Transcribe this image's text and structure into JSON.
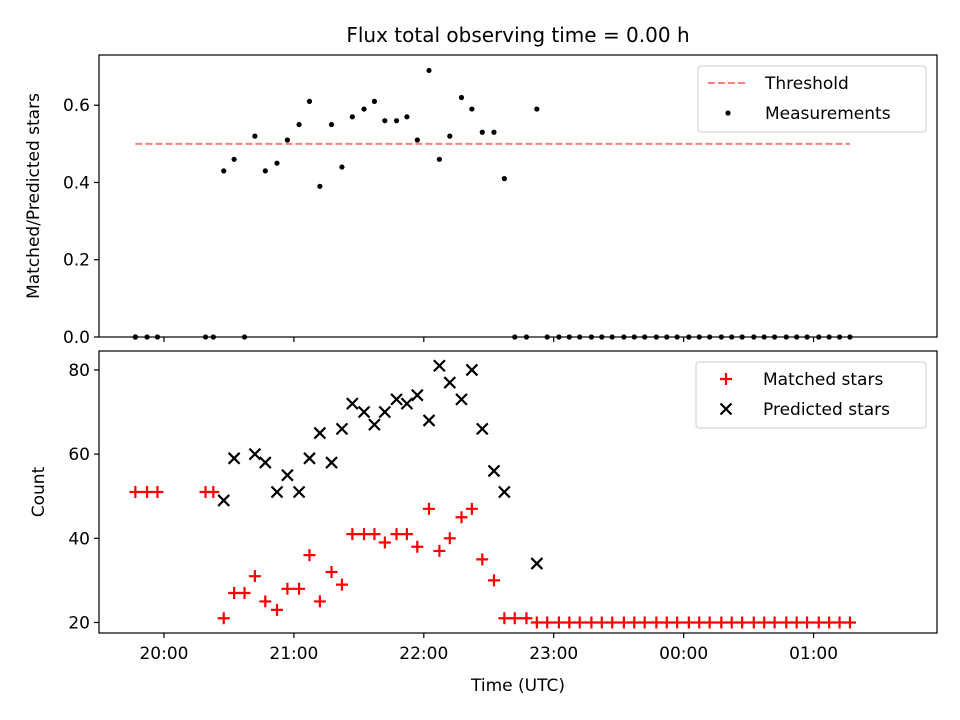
{
  "chart_data": {
    "title": "Flux total observing time = 0.00 h",
    "shared_x": {
      "label": "Time (UTC)",
      "unit": "hours",
      "range": [
        19.5,
        25.95
      ],
      "ticks": [
        20,
        21,
        22,
        23,
        24,
        25
      ],
      "tick_labels": [
        "20:00",
        "21:00",
        "22:00",
        "23:00",
        "00:00",
        "01:00"
      ]
    },
    "panels": [
      {
        "type": "scatter",
        "ylabel": "Matched/Predicted stars",
        "ylim": [
          0,
          0.73
        ],
        "yticks": [
          0.0,
          0.2,
          0.4,
          0.6
        ],
        "ytick_labels": [
          "0.0",
          "0.2",
          "0.4",
          "0.6"
        ],
        "legend": "top-right",
        "threshold": {
          "name": "Threshold",
          "value": 0.5,
          "x_range": [
            19.78,
            25.28
          ],
          "color": "#ff7f7f",
          "style": "dashed"
        },
        "series": [
          {
            "name": "Measurements",
            "color": "#000000",
            "marker": "dot",
            "x": [
              19.78,
              19.87,
              19.95,
              20.32,
              20.38,
              20.62,
              19.78,
              20.46,
              20.54,
              20.7,
              20.78,
              20.87,
              20.95,
              21.04,
              21.12,
              21.2,
              21.29,
              21.37,
              21.45,
              21.54,
              21.62,
              21.7,
              21.79,
              21.87,
              21.95,
              22.04,
              22.12,
              22.2,
              22.29,
              22.37,
              22.45,
              22.54,
              22.62,
              22.87,
              22.7,
              22.79,
              22.95,
              23.04,
              23.12,
              23.2,
              23.29,
              23.37,
              23.45,
              23.54,
              23.62,
              23.7,
              23.79,
              23.87,
              23.95,
              24.04,
              24.12,
              24.2,
              24.29,
              24.37,
              24.45,
              24.54,
              24.62,
              24.7,
              24.79,
              24.87,
              24.95,
              25.04,
              25.12,
              25.2,
              25.28
            ],
            "y": [
              0,
              0,
              0,
              0,
              0,
              0,
              0,
              0.43,
              0.46,
              0.52,
              0.43,
              0.45,
              0.51,
              0.55,
              0.61,
              0.39,
              0.55,
              0.44,
              0.57,
              0.59,
              0.61,
              0.56,
              0.56,
              0.57,
              0.51,
              0.69,
              0.46,
              0.52,
              0.62,
              0.59,
              0.53,
              0.53,
              0.41,
              0.59,
              0,
              0,
              0,
              0,
              0,
              0,
              0,
              0,
              0,
              0,
              0,
              0,
              0,
              0,
              0,
              0,
              0,
              0,
              0,
              0,
              0,
              0,
              0,
              0,
              0,
              0,
              0,
              0,
              0,
              0,
              0
            ]
          }
        ]
      },
      {
        "type": "scatter",
        "ylabel": "Count",
        "ylim": [
          17.5,
          84.5
        ],
        "yticks": [
          20,
          40,
          60,
          80
        ],
        "ytick_labels": [
          "20",
          "40",
          "60",
          "80"
        ],
        "legend": "top-right",
        "series": [
          {
            "name": "Matched stars",
            "color": "#ff0000",
            "marker": "plus",
            "x": [
              19.78,
              19.87,
              19.95,
              20.32,
              20.38,
              20.46,
              20.54,
              20.62,
              20.7,
              20.78,
              20.87,
              20.95,
              21.04,
              21.12,
              21.2,
              21.29,
              21.37,
              21.45,
              21.54,
              21.62,
              21.7,
              21.79,
              21.87,
              21.95,
              22.04,
              22.12,
              22.2,
              22.29,
              22.37,
              22.45,
              22.54,
              22.62,
              22.7,
              22.79,
              22.87,
              22.95,
              23.04,
              23.12,
              23.2,
              23.29,
              23.37,
              23.45,
              23.54,
              23.62,
              23.7,
              23.79,
              23.87,
              23.95,
              24.04,
              24.12,
              24.2,
              24.29,
              24.37,
              24.45,
              24.54,
              24.62,
              24.7,
              24.79,
              24.87,
              24.95,
              25.04,
              25.12,
              25.2,
              25.28
            ],
            "y": [
              51,
              51,
              51,
              51,
              51,
              21,
              27,
              27,
              31,
              25,
              23,
              28,
              28,
              36,
              25,
              32,
              29,
              41,
              41,
              41,
              39,
              41,
              41,
              38,
              47,
              37,
              40,
              45,
              47,
              35,
              30,
              21,
              21,
              21,
              20,
              20,
              20,
              20,
              20,
              20,
              20,
              20,
              20,
              20,
              20,
              20,
              20,
              20,
              20,
              20,
              20,
              20,
              20,
              20,
              20,
              20,
              20,
              20,
              20,
              20,
              20,
              20,
              20,
              20
            ]
          },
          {
            "name": "Predicted stars",
            "color": "#000000",
            "marker": "x",
            "x": [
              20.46,
              20.54,
              20.7,
              20.78,
              20.87,
              20.95,
              21.04,
              21.12,
              21.2,
              21.29,
              21.37,
              21.45,
              21.54,
              21.62,
              21.7,
              21.79,
              21.87,
              21.95,
              22.04,
              22.12,
              22.2,
              22.29,
              22.37,
              22.45,
              22.54,
              22.62,
              22.87
            ],
            "y": [
              49,
              59,
              60,
              58,
              51,
              55,
              51,
              59,
              65,
              58,
              66,
              72,
              70,
              67,
              70,
              73,
              72,
              74,
              68,
              81,
              77,
              73,
              80,
              66,
              56,
              51,
              34
            ]
          }
        ]
      }
    ]
  }
}
